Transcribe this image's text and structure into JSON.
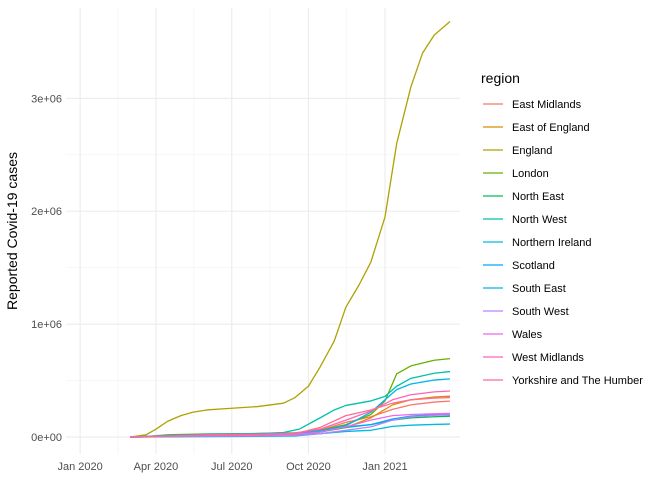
{
  "chart_data": {
    "type": "line",
    "title": "",
    "xlabel": "",
    "ylabel": "Reported Covid-19 cases",
    "x_axis_type": "date",
    "xlim": [
      "2019-12-15",
      "2021-04-01"
    ],
    "ylim": [
      -150000,
      3800000
    ],
    "x_ticks": [
      {
        "value": "2020-01-01",
        "label": "Jan 2020"
      },
      {
        "value": "2020-04-01",
        "label": "Apr 2020"
      },
      {
        "value": "2020-07-01",
        "label": "Jul 2020"
      },
      {
        "value": "2020-10-01",
        "label": "Oct 2020"
      },
      {
        "value": "2021-01-01",
        "label": "Jan 2021"
      }
    ],
    "y_ticks": [
      {
        "value": 0,
        "label": "0e+00"
      },
      {
        "value": 1000000,
        "label": "1e+06"
      },
      {
        "value": 2000000,
        "label": "2e+06"
      },
      {
        "value": 3000000,
        "label": "3e+06"
      }
    ],
    "grid": true,
    "legend": {
      "title": "region",
      "position": "right"
    },
    "series": [
      {
        "name": "East Midlands",
        "color": "#F8766D",
        "points": [
          [
            "2020-03-01",
            0
          ],
          [
            "2020-04-15",
            6000
          ],
          [
            "2020-06-01",
            12000
          ],
          [
            "2020-08-01",
            17000
          ],
          [
            "2020-09-15",
            24000
          ],
          [
            "2020-10-15",
            60000
          ],
          [
            "2020-11-15",
            130000
          ],
          [
            "2020-12-15",
            180000
          ],
          [
            "2021-01-10",
            245000
          ],
          [
            "2021-02-01",
            285000
          ],
          [
            "2021-03-01",
            310000
          ],
          [
            "2021-03-20",
            318000
          ]
        ]
      },
      {
        "name": "East of England",
        "color": "#DB8E00",
        "points": [
          [
            "2020-03-01",
            0
          ],
          [
            "2020-04-15",
            10000
          ],
          [
            "2020-06-01",
            18000
          ],
          [
            "2020-08-01",
            22000
          ],
          [
            "2020-09-15",
            28000
          ],
          [
            "2020-10-15",
            45000
          ],
          [
            "2020-11-15",
            85000
          ],
          [
            "2020-12-15",
            170000
          ],
          [
            "2021-01-10",
            285000
          ],
          [
            "2021-02-01",
            330000
          ],
          [
            "2021-03-01",
            355000
          ],
          [
            "2021-03-20",
            362000
          ]
        ]
      },
      {
        "name": "England",
        "color": "#AEA200",
        "points": [
          [
            "2020-03-01",
            0
          ],
          [
            "2020-03-20",
            20000
          ],
          [
            "2020-04-01",
            70000
          ],
          [
            "2020-04-15",
            140000
          ],
          [
            "2020-05-01",
            190000
          ],
          [
            "2020-05-15",
            220000
          ],
          [
            "2020-06-01",
            240000
          ],
          [
            "2020-07-01",
            255000
          ],
          [
            "2020-08-01",
            270000
          ],
          [
            "2020-09-01",
            300000
          ],
          [
            "2020-09-15",
            350000
          ],
          [
            "2020-10-01",
            450000
          ],
          [
            "2020-10-15",
            620000
          ],
          [
            "2020-11-01",
            850000
          ],
          [
            "2020-11-15",
            1150000
          ],
          [
            "2020-12-01",
            1350000
          ],
          [
            "2020-12-15",
            1550000
          ],
          [
            "2021-01-01",
            1950000
          ],
          [
            "2021-01-15",
            2600000
          ],
          [
            "2021-02-01",
            3100000
          ],
          [
            "2021-02-15",
            3400000
          ],
          [
            "2021-03-01",
            3560000
          ],
          [
            "2021-03-20",
            3680000
          ]
        ]
      },
      {
        "name": "London",
        "color": "#64B200",
        "points": [
          [
            "2020-03-01",
            0
          ],
          [
            "2020-03-20",
            5000
          ],
          [
            "2020-04-15",
            20000
          ],
          [
            "2020-06-01",
            28000
          ],
          [
            "2020-08-01",
            32000
          ],
          [
            "2020-09-15",
            38000
          ],
          [
            "2020-10-15",
            60000
          ],
          [
            "2020-11-15",
            110000
          ],
          [
            "2020-12-15",
            200000
          ],
          [
            "2021-01-01",
            320000
          ],
          [
            "2021-01-15",
            560000
          ],
          [
            "2021-02-01",
            630000
          ],
          [
            "2021-03-01",
            680000
          ],
          [
            "2021-03-20",
            695000
          ]
        ]
      },
      {
        "name": "North East",
        "color": "#00BD5C",
        "points": [
          [
            "2020-03-01",
            0
          ],
          [
            "2020-04-15",
            4000
          ],
          [
            "2020-06-01",
            8000
          ],
          [
            "2020-08-01",
            10000
          ],
          [
            "2020-09-15",
            14000
          ],
          [
            "2020-10-15",
            45000
          ],
          [
            "2020-11-15",
            85000
          ],
          [
            "2020-12-15",
            110000
          ],
          [
            "2021-01-10",
            150000
          ],
          [
            "2021-02-01",
            170000
          ],
          [
            "2021-03-01",
            180000
          ],
          [
            "2021-03-20",
            185000
          ]
        ]
      },
      {
        "name": "North West",
        "color": "#00C1A7",
        "points": [
          [
            "2020-03-01",
            0
          ],
          [
            "2020-04-15",
            10000
          ],
          [
            "2020-06-01",
            22000
          ],
          [
            "2020-08-01",
            30000
          ],
          [
            "2020-09-01",
            40000
          ],
          [
            "2020-09-20",
            70000
          ],
          [
            "2020-10-15",
            170000
          ],
          [
            "2020-11-01",
            240000
          ],
          [
            "2020-11-15",
            280000
          ],
          [
            "2020-12-15",
            320000
          ],
          [
            "2021-01-01",
            360000
          ],
          [
            "2021-01-15",
            450000
          ],
          [
            "2021-02-01",
            520000
          ],
          [
            "2021-03-01",
            565000
          ],
          [
            "2021-03-20",
            580000
          ]
        ]
      },
      {
        "name": "Northern Ireland",
        "color": "#00BADE",
        "points": [
          [
            "2020-03-01",
            0
          ],
          [
            "2020-04-15",
            2000
          ],
          [
            "2020-06-01",
            4000
          ],
          [
            "2020-08-01",
            6000
          ],
          [
            "2020-09-15",
            10000
          ],
          [
            "2020-10-15",
            30000
          ],
          [
            "2020-11-15",
            50000
          ],
          [
            "2020-12-15",
            60000
          ],
          [
            "2021-01-10",
            95000
          ],
          [
            "2021-02-01",
            105000
          ],
          [
            "2021-03-01",
            112000
          ],
          [
            "2021-03-20",
            115000
          ]
        ]
      },
      {
        "name": "Scotland",
        "color": "#00A6FF",
        "points": [
          [
            "2020-03-01",
            0
          ],
          [
            "2020-04-15",
            6000
          ],
          [
            "2020-06-01",
            12000
          ],
          [
            "2020-08-01",
            16000
          ],
          [
            "2020-09-15",
            25000
          ],
          [
            "2020-10-15",
            50000
          ],
          [
            "2020-11-15",
            90000
          ],
          [
            "2020-12-15",
            110000
          ],
          [
            "2021-01-10",
            160000
          ],
          [
            "2021-02-01",
            185000
          ],
          [
            "2021-03-01",
            200000
          ],
          [
            "2021-03-20",
            205000
          ]
        ]
      },
      {
        "name": "South East",
        "color": "#00B4EF",
        "points": [
          [
            "2020-03-01",
            0
          ],
          [
            "2020-04-15",
            15000
          ],
          [
            "2020-06-01",
            25000
          ],
          [
            "2020-08-01",
            28000
          ],
          [
            "2020-09-15",
            35000
          ],
          [
            "2020-10-15",
            55000
          ],
          [
            "2020-11-15",
            100000
          ],
          [
            "2020-12-15",
            220000
          ],
          [
            "2021-01-01",
            330000
          ],
          [
            "2021-01-15",
            420000
          ],
          [
            "2021-02-01",
            470000
          ],
          [
            "2021-03-01",
            505000
          ],
          [
            "2021-03-20",
            515000
          ]
        ]
      },
      {
        "name": "South West",
        "color": "#B385FF",
        "points": [
          [
            "2020-03-01",
            0
          ],
          [
            "2020-04-15",
            5000
          ],
          [
            "2020-06-01",
            9000
          ],
          [
            "2020-08-01",
            11000
          ],
          [
            "2020-09-15",
            15000
          ],
          [
            "2020-10-15",
            30000
          ],
          [
            "2020-11-15",
            60000
          ],
          [
            "2020-12-15",
            90000
          ],
          [
            "2021-01-10",
            150000
          ],
          [
            "2021-02-01",
            180000
          ],
          [
            "2021-03-01",
            192000
          ],
          [
            "2021-03-20",
            197000
          ]
        ]
      },
      {
        "name": "Wales",
        "color": "#EF67EB",
        "points": [
          [
            "2020-03-01",
            0
          ],
          [
            "2020-04-15",
            8000
          ],
          [
            "2020-06-01",
            15000
          ],
          [
            "2020-08-01",
            18000
          ],
          [
            "2020-09-15",
            25000
          ],
          [
            "2020-10-15",
            45000
          ],
          [
            "2020-11-15",
            90000
          ],
          [
            "2020-12-15",
            150000
          ],
          [
            "2021-01-10",
            190000
          ],
          [
            "2021-02-01",
            200000
          ],
          [
            "2021-03-01",
            206000
          ],
          [
            "2021-03-20",
            210000
          ]
        ]
      },
      {
        "name": "West Midlands",
        "color": "#FF63B6",
        "points": [
          [
            "2020-03-01",
            0
          ],
          [
            "2020-04-15",
            10000
          ],
          [
            "2020-06-01",
            20000
          ],
          [
            "2020-08-01",
            25000
          ],
          [
            "2020-09-15",
            35000
          ],
          [
            "2020-10-15",
            70000
          ],
          [
            "2020-11-15",
            150000
          ],
          [
            "2020-12-15",
            230000
          ],
          [
            "2021-01-10",
            330000
          ],
          [
            "2021-02-01",
            375000
          ],
          [
            "2021-03-01",
            400000
          ],
          [
            "2021-03-20",
            408000
          ]
        ]
      },
      {
        "name": "Yorkshire and The Humber",
        "color": "#FF6C91",
        "points": [
          [
            "2020-03-01",
            0
          ],
          [
            "2020-04-15",
            7000
          ],
          [
            "2020-06-01",
            14000
          ],
          [
            "2020-08-01",
            20000
          ],
          [
            "2020-09-15",
            30000
          ],
          [
            "2020-10-15",
            85000
          ],
          [
            "2020-11-15",
            190000
          ],
          [
            "2020-12-15",
            240000
          ],
          [
            "2021-01-10",
            300000
          ],
          [
            "2021-02-01",
            330000
          ],
          [
            "2021-03-01",
            345000
          ],
          [
            "2021-03-20",
            350000
          ]
        ]
      }
    ]
  }
}
